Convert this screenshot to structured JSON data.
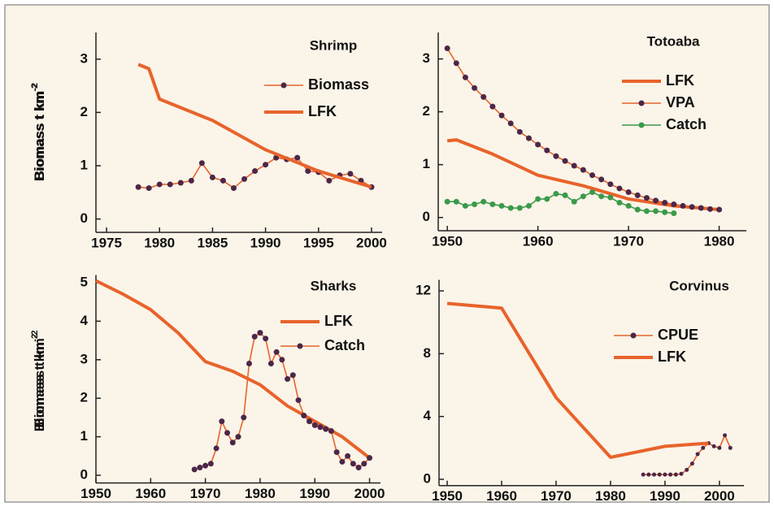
{
  "chart_data": [
    {
      "type": "line",
      "title": "Shrimp",
      "y_label": "Biomass t km",
      "y_label_exponent": "-2",
      "xlim": [
        1974,
        2001
      ],
      "xticks": [
        1975,
        1980,
        1985,
        1990,
        1995,
        2000
      ],
      "ylim": [
        -0.25,
        3.5
      ],
      "yticks": [
        0,
        1,
        2,
        3
      ],
      "grid": false,
      "series": [
        {
          "name": "Biomass",
          "color": "#e8632b",
          "markers": true,
          "x": [
            1978,
            1979,
            1980,
            1981,
            1982,
            1983,
            1984,
            1985,
            1986,
            1987,
            1988,
            1989,
            1990,
            1991,
            1992,
            1993,
            1994,
            1995,
            1996,
            1997,
            1998,
            1999,
            2000
          ],
          "values": [
            0.6,
            0.58,
            0.65,
            0.65,
            0.68,
            0.72,
            1.05,
            0.78,
            0.72,
            0.58,
            0.75,
            0.9,
            1.02,
            1.15,
            1.12,
            1.15,
            0.9,
            0.88,
            0.72,
            0.82,
            0.85,
            0.72,
            0.6
          ]
        },
        {
          "name": "LFK",
          "color": "#e8632b",
          "markers": false,
          "x": [
            1978,
            1979,
            1980,
            1985,
            1990,
            1995,
            2000
          ],
          "values": [
            2.9,
            2.82,
            2.25,
            1.85,
            1.3,
            0.9,
            0.6
          ]
        }
      ]
    },
    {
      "type": "line",
      "title": "Totoaba",
      "y_label": "Biomass t km",
      "y_label_exponent": "-2",
      "xlim": [
        1949,
        1983
      ],
      "xticks": [
        1950,
        1960,
        1970,
        1980
      ],
      "ylim": [
        -0.25,
        3.5
      ],
      "yticks": [
        0,
        1,
        2,
        3
      ],
      "grid": false,
      "series": [
        {
          "name": "LFK",
          "color": "#e8632b",
          "markers": false,
          "x": [
            1950,
            1951,
            1955,
            1960,
            1965,
            1970,
            1975,
            1980
          ],
          "values": [
            1.45,
            1.47,
            1.2,
            0.8,
            0.6,
            0.35,
            0.22,
            0.15
          ]
        },
        {
          "name": "VPA",
          "color": "#e8632b",
          "markers": true,
          "x": [
            1950,
            1951,
            1952,
            1953,
            1954,
            1955,
            1956,
            1957,
            1958,
            1959,
            1960,
            1961,
            1962,
            1963,
            1964,
            1965,
            1966,
            1967,
            1968,
            1969,
            1970,
            1971,
            1972,
            1973,
            1974,
            1975,
            1976,
            1977,
            1978,
            1979,
            1980
          ],
          "values": [
            3.2,
            2.92,
            2.65,
            2.45,
            2.28,
            2.1,
            1.93,
            1.78,
            1.62,
            1.5,
            1.38,
            1.27,
            1.16,
            1.07,
            0.98,
            0.9,
            0.8,
            0.72,
            0.63,
            0.55,
            0.48,
            0.42,
            0.37,
            0.32,
            0.28,
            0.25,
            0.22,
            0.2,
            0.18,
            0.16,
            0.15
          ]
        },
        {
          "name": "Catch",
          "color": "#3a9a4a",
          "markers": true,
          "marker_color": "#3a9a4a",
          "x": [
            1950,
            1951,
            1952,
            1953,
            1954,
            1955,
            1956,
            1957,
            1958,
            1959,
            1960,
            1961,
            1962,
            1963,
            1964,
            1965,
            1966,
            1967,
            1968,
            1969,
            1970,
            1971,
            1972,
            1973,
            1974,
            1975
          ],
          "values": [
            0.3,
            0.3,
            0.22,
            0.25,
            0.3,
            0.25,
            0.22,
            0.18,
            0.18,
            0.22,
            0.35,
            0.35,
            0.45,
            0.42,
            0.3,
            0.4,
            0.48,
            0.4,
            0.38,
            0.28,
            0.22,
            0.15,
            0.12,
            0.12,
            0.1,
            0.08
          ]
        }
      ]
    },
    {
      "type": "line",
      "title": "Sharks",
      "y_label": "Biomass t km",
      "y_label_exponent": "-2",
      "xlim": [
        1950,
        2002
      ],
      "xticks": [
        1950,
        1960,
        1970,
        1980,
        1990,
        2000
      ],
      "ylim": [
        -0.2,
        5.2
      ],
      "yticks": [
        0,
        1,
        2,
        3,
        4,
        5
      ],
      "grid": false,
      "series": [
        {
          "name": "LFK",
          "color": "#e8632b",
          "markers": false,
          "x": [
            1950,
            1955,
            1960,
            1965,
            1970,
            1975,
            1980,
            1985,
            1990,
            1995,
            2000
          ],
          "values": [
            5.05,
            4.7,
            4.3,
            3.7,
            2.95,
            2.7,
            2.35,
            1.8,
            1.4,
            1.0,
            0.45
          ]
        },
        {
          "name": "Catch",
          "color": "#e8632b",
          "markers": true,
          "x": [
            1968,
            1969,
            1970,
            1971,
            1972,
            1973,
            1974,
            1975,
            1976,
            1977,
            1978,
            1979,
            1980,
            1981,
            1982,
            1983,
            1984,
            1985,
            1986,
            1987,
            1988,
            1989,
            1990,
            1991,
            1992,
            1993,
            1994,
            1995,
            1996,
            1997,
            1998,
            1999,
            2000
          ],
          "values": [
            0.15,
            0.2,
            0.25,
            0.3,
            0.7,
            1.4,
            1.1,
            0.85,
            1.0,
            1.5,
            2.9,
            3.6,
            3.7,
            3.55,
            2.9,
            3.2,
            3.0,
            2.5,
            2.6,
            1.95,
            1.55,
            1.4,
            1.3,
            1.25,
            1.2,
            1.15,
            0.6,
            0.35,
            0.5,
            0.3,
            0.2,
            0.3,
            0.45
          ]
        }
      ]
    },
    {
      "type": "line",
      "title": "Corvinus",
      "y_label": "Biomass t km",
      "y_label_exponent": "-2",
      "xlim": [
        1948.5,
        2004.5
      ],
      "xticks": [
        1950,
        1960,
        1970,
        1980,
        1990,
        2000
      ],
      "ylim": [
        -0.4,
        12.7
      ],
      "yticks": [
        0,
        4,
        8,
        12
      ],
      "grid": false,
      "series": [
        {
          "name": "CPUE",
          "color": "#e8632b",
          "markers": true,
          "thin": true,
          "x": [
            1986,
            1987,
            1988,
            1989,
            1990,
            1991,
            1992,
            1993,
            1994,
            1995,
            1996,
            1997,
            1998,
            1999,
            2000,
            2001,
            2002
          ],
          "values": [
            0.3,
            0.3,
            0.3,
            0.3,
            0.3,
            0.3,
            0.3,
            0.35,
            0.6,
            1.0,
            1.6,
            2.0,
            2.3,
            2.1,
            2.0,
            2.8,
            2.0
          ]
        },
        {
          "name": "LFK",
          "color": "#e8632b",
          "markers": false,
          "x": [
            1950,
            1960,
            1970,
            1980,
            1990,
            1998
          ],
          "values": [
            11.2,
            10.9,
            5.2,
            1.4,
            2.1,
            2.3
          ]
        }
      ]
    }
  ]
}
